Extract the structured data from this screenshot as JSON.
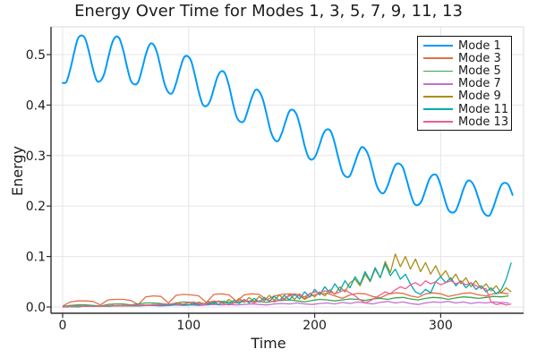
{
  "figure": {
    "background": "#ffffff",
    "grid_color": "#e5e5e5",
    "spine_color": "#2f2f2f",
    "frame_light_color": "#d9d9d9",
    "text_color": "#1c1c1c"
  },
  "chart_data": {
    "type": "line",
    "title": "Energy Over Time for Modes 1, 3, 5, 7, 9, 11, 13",
    "xlabel": "Time",
    "ylabel": "Energy",
    "xlim": [
      -8,
      366
    ],
    "ylim": [
      -0.012,
      0.555
    ],
    "grid": true,
    "legend_position": "top-right",
    "x_ticks": [
      0,
      100,
      200,
      300
    ],
    "x_tick_labels": [
      "0",
      "100",
      "200",
      "300"
    ],
    "y_ticks": [
      0.0,
      0.1,
      0.2,
      0.3,
      0.4,
      0.5
    ],
    "y_tick_labels": [
      "0.0",
      "0.1",
      "0.2",
      "0.3",
      "0.4",
      "0.5"
    ],
    "series": [
      {
        "name": "Mode 1",
        "color": "#009AF9",
        "x_start": 0,
        "x_step": 3,
        "smooth": true,
        "line_width": 2,
        "values": [
          0.444,
          0.446,
          0.47,
          0.503,
          0.531,
          0.538,
          0.531,
          0.504,
          0.472,
          0.449,
          0.448,
          0.462,
          0.492,
          0.521,
          0.535,
          0.532,
          0.509,
          0.477,
          0.449,
          0.441,
          0.446,
          0.471,
          0.5,
          0.52,
          0.52,
          0.503,
          0.472,
          0.441,
          0.425,
          0.424,
          0.443,
          0.47,
          0.493,
          0.497,
          0.487,
          0.459,
          0.426,
          0.402,
          0.398,
          0.408,
          0.433,
          0.457,
          0.467,
          0.462,
          0.438,
          0.405,
          0.377,
          0.367,
          0.369,
          0.39,
          0.414,
          0.43,
          0.427,
          0.41,
          0.38,
          0.349,
          0.332,
          0.329,
          0.345,
          0.368,
          0.388,
          0.39,
          0.379,
          0.352,
          0.32,
          0.297,
          0.292,
          0.301,
          0.322,
          0.344,
          0.352,
          0.347,
          0.324,
          0.293,
          0.267,
          0.258,
          0.26,
          0.279,
          0.301,
          0.316,
          0.313,
          0.298,
          0.27,
          0.242,
          0.228,
          0.226,
          0.241,
          0.263,
          0.281,
          0.284,
          0.276,
          0.252,
          0.225,
          0.205,
          0.202,
          0.211,
          0.232,
          0.253,
          0.262,
          0.26,
          0.241,
          0.215,
          0.193,
          0.187,
          0.191,
          0.21,
          0.233,
          0.249,
          0.249,
          0.237,
          0.215,
          0.192,
          0.182,
          0.182,
          0.199,
          0.222,
          0.241,
          0.246,
          0.241,
          0.222
        ]
      },
      {
        "name": "Mode 3",
        "color": "#E36F47",
        "x_start": 0,
        "x_step": 6,
        "smooth": false,
        "line_width": 1.3,
        "values": [
          0.002,
          0.01,
          0.012,
          0.012,
          0.011,
          0.004,
          0.014,
          0.015,
          0.015,
          0.013,
          0.005,
          0.02,
          0.022,
          0.021,
          0.008,
          0.023,
          0.025,
          0.024,
          0.022,
          0.009,
          0.025,
          0.026,
          0.024,
          0.011,
          0.024,
          0.026,
          0.025,
          0.014,
          0.022,
          0.025,
          0.026,
          0.025,
          0.015,
          0.023,
          0.026,
          0.027,
          0.022,
          0.017,
          0.024,
          0.027,
          0.026,
          0.021,
          0.018,
          0.025,
          0.028,
          0.027,
          0.022,
          0.019,
          0.026,
          0.028,
          0.026,
          0.021,
          0.024,
          0.027,
          0.028,
          0.024,
          0.022,
          0.026,
          0.028,
          0.026
        ]
      },
      {
        "name": "Mode 5",
        "color": "#3EA44E",
        "x_start": 0,
        "x_step": 6,
        "smooth": false,
        "line_width": 1.3,
        "values": [
          0.001,
          0.003,
          0.004,
          0.004,
          0.003,
          0.002,
          0.005,
          0.006,
          0.006,
          0.004,
          0.006,
          0.008,
          0.008,
          0.007,
          0.005,
          0.008,
          0.01,
          0.009,
          0.007,
          0.006,
          0.01,
          0.011,
          0.01,
          0.008,
          0.011,
          0.012,
          0.011,
          0.009,
          0.012,
          0.013,
          0.014,
          0.012,
          0.01,
          0.013,
          0.015,
          0.014,
          0.012,
          0.014,
          0.016,
          0.015,
          0.013,
          0.016,
          0.017,
          0.015,
          0.018,
          0.019,
          0.016,
          0.014,
          0.017,
          0.019,
          0.018,
          0.015,
          0.018,
          0.02,
          0.019,
          0.017,
          0.019,
          0.021,
          0.02,
          0.022
        ]
      },
      {
        "name": "Mode 7",
        "color": "#C371D2",
        "x_start": 0,
        "x_step": 6,
        "smooth": false,
        "line_width": 1.3,
        "values": [
          0.0,
          0.001,
          0.001,
          0.002,
          0.001,
          0.001,
          0.002,
          0.002,
          0.003,
          0.002,
          0.002,
          0.003,
          0.003,
          0.002,
          0.003,
          0.004,
          0.003,
          0.004,
          0.003,
          0.004,
          0.005,
          0.004,
          0.005,
          0.004,
          0.005,
          0.006,
          0.005,
          0.004,
          0.006,
          0.007,
          0.006,
          0.008,
          0.006,
          0.005,
          0.007,
          0.008,
          0.006,
          0.009,
          0.007,
          0.01,
          0.008,
          0.006,
          0.009,
          0.011,
          0.008,
          0.01,
          0.007,
          0.005,
          0.008,
          0.01,
          0.009,
          0.011,
          0.008,
          0.01,
          0.007,
          0.009,
          0.008,
          0.01,
          0.009,
          0.008
        ]
      },
      {
        "name": "Mode 9",
        "color": "#AC8E18",
        "x_start": 0,
        "x_step": 4,
        "smooth": false,
        "line_width": 1.3,
        "values": [
          0.0,
          0.001,
          0.0,
          0.001,
          0.001,
          0.002,
          0.001,
          0.002,
          0.001,
          0.002,
          0.002,
          0.003,
          0.002,
          0.003,
          0.002,
          0.004,
          0.003,
          0.004,
          0.003,
          0.005,
          0.004,
          0.006,
          0.004,
          0.008,
          0.004,
          0.009,
          0.005,
          0.01,
          0.006,
          0.011,
          0.006,
          0.012,
          0.007,
          0.015,
          0.008,
          0.017,
          0.009,
          0.019,
          0.01,
          0.021,
          0.012,
          0.023,
          0.013,
          0.024,
          0.014,
          0.025,
          0.015,
          0.026,
          0.016,
          0.027,
          0.02,
          0.03,
          0.022,
          0.034,
          0.025,
          0.04,
          0.03,
          0.048,
          0.055,
          0.042,
          0.065,
          0.05,
          0.075,
          0.058,
          0.09,
          0.068,
          0.105,
          0.08,
          0.1,
          0.075,
          0.095,
          0.07,
          0.088,
          0.065,
          0.082,
          0.06,
          0.072,
          0.052,
          0.065,
          0.046,
          0.058,
          0.04,
          0.052,
          0.036,
          0.046,
          0.032,
          0.042,
          0.028,
          0.038,
          0.03
        ]
      },
      {
        "name": "Mode 11",
        "color": "#00AAAE",
        "x_start": 0,
        "x_step": 4,
        "smooth": false,
        "line_width": 1.3,
        "values": [
          0.0,
          0.0,
          0.001,
          0.0,
          0.001,
          0.001,
          0.002,
          0.001,
          0.002,
          0.001,
          0.002,
          0.002,
          0.003,
          0.002,
          0.003,
          0.002,
          0.003,
          0.003,
          0.004,
          0.003,
          0.004,
          0.003,
          0.005,
          0.004,
          0.005,
          0.004,
          0.006,
          0.005,
          0.007,
          0.005,
          0.009,
          0.005,
          0.011,
          0.006,
          0.013,
          0.007,
          0.015,
          0.008,
          0.017,
          0.01,
          0.019,
          0.011,
          0.021,
          0.013,
          0.023,
          0.014,
          0.025,
          0.016,
          0.03,
          0.02,
          0.035,
          0.024,
          0.04,
          0.028,
          0.046,
          0.032,
          0.052,
          0.038,
          0.06,
          0.045,
          0.07,
          0.052,
          0.078,
          0.058,
          0.085,
          0.062,
          0.075,
          0.055,
          0.065,
          0.045,
          0.03,
          0.025,
          0.035,
          0.028,
          0.05,
          0.06,
          0.048,
          0.058,
          0.042,
          0.052,
          0.038,
          0.048,
          0.035,
          0.042,
          0.03,
          0.038,
          0.026,
          0.034,
          0.055,
          0.088
        ]
      },
      {
        "name": "Mode 13",
        "color": "#EE5E93",
        "x_start": 0,
        "x_step": 4,
        "smooth": false,
        "line_width": 1.3,
        "values": [
          0.0,
          0.001,
          0.001,
          0.002,
          0.001,
          0.002,
          0.001,
          0.001,
          0.002,
          0.002,
          0.003,
          0.002,
          0.003,
          0.002,
          0.004,
          0.003,
          0.004,
          0.003,
          0.005,
          0.004,
          0.006,
          0.005,
          0.007,
          0.005,
          0.006,
          0.008,
          0.01,
          0.007,
          0.005,
          0.009,
          0.012,
          0.01,
          0.006,
          0.004,
          0.008,
          0.012,
          0.014,
          0.011,
          0.008,
          0.012,
          0.015,
          0.013,
          0.01,
          0.014,
          0.017,
          0.022,
          0.026,
          0.024,
          0.02,
          0.026,
          0.03,
          0.028,
          0.032,
          0.03,
          0.026,
          0.03,
          0.034,
          0.028,
          0.022,
          0.014,
          0.008,
          0.012,
          0.018,
          0.024,
          0.03,
          0.026,
          0.034,
          0.04,
          0.036,
          0.044,
          0.048,
          0.042,
          0.052,
          0.046,
          0.05,
          0.044,
          0.048,
          0.052,
          0.046,
          0.05,
          0.044,
          0.048,
          0.042,
          0.038,
          0.036,
          0.01,
          0.005,
          0.007,
          0.004,
          0.006
        ]
      }
    ]
  }
}
